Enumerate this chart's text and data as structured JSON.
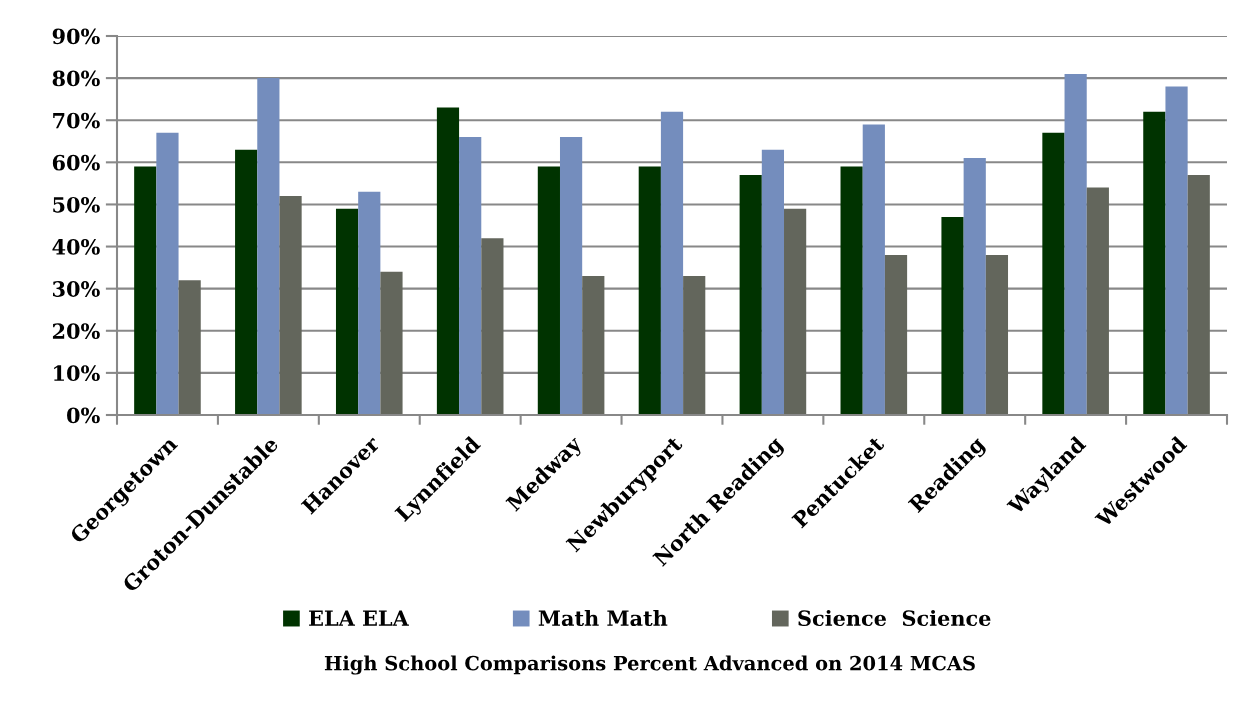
{
  "chart_data": {
    "type": "bar",
    "title": "High School Comparisons Percent Advanced on 2014 MCAS",
    "categories": [
      "Georgetown",
      "Groton-Dunstable",
      "Hanover",
      "Lynnfield",
      "Medway",
      "Newburyport",
      "North Reading",
      "Pentucket",
      "Reading",
      "Wayland",
      "Westwood"
    ],
    "series": [
      {
        "name": "ELA ELA",
        "color": "#003300",
        "values": [
          59,
          63,
          49,
          73,
          59,
          59,
          57,
          59,
          47,
          67,
          72
        ]
      },
      {
        "name": "Math Math",
        "color": "#748dbd",
        "values": [
          67,
          80,
          53,
          66,
          66,
          72,
          63,
          69,
          61,
          81,
          78
        ]
      },
      {
        "name": "Science  Science",
        "color": "#63665c",
        "values": [
          32,
          52,
          34,
          42,
          33,
          33,
          49,
          38,
          38,
          54,
          57
        ]
      }
    ],
    "ylim": [
      0,
      90
    ],
    "yticks": [
      {
        "value": 0,
        "label": "0%"
      },
      {
        "value": 10,
        "label": "10%"
      },
      {
        "value": 20,
        "label": "20%"
      },
      {
        "value": 30,
        "label": "30%"
      },
      {
        "value": 40,
        "label": "40%"
      },
      {
        "value": 50,
        "label": "50%"
      },
      {
        "value": 60,
        "label": "60%"
      },
      {
        "value": 70,
        "label": "70%"
      },
      {
        "value": 80,
        "label": "80%"
      },
      {
        "value": 90,
        "label": "90%"
      }
    ],
    "grid": "y",
    "legend": "bottom"
  }
}
